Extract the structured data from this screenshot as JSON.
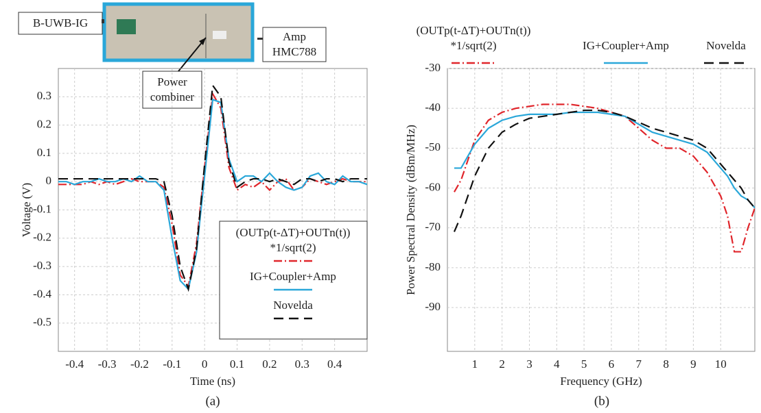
{
  "chart_data": [
    {
      "type": "line",
      "caption": "(a)",
      "xlabel": "Time (ns)",
      "ylabel": "Voltage (V)",
      "annotations": [
        "B-UWB-IG",
        "Amp\nHMC788",
        "Power\ncombiner"
      ],
      "xlim": [
        -0.45,
        0.5
      ],
      "ylim": [
        -0.6,
        0.4
      ],
      "xticks": [
        -0.4,
        -0.3,
        -0.2,
        -0.1,
        0,
        0.1,
        0.2,
        0.3,
        0.4
      ],
      "yticks": [
        -0.5,
        -0.4,
        -0.3,
        -0.2,
        -0.1,
        0,
        0.1,
        0.2,
        0.3
      ],
      "grid": true,
      "legend": "lower right",
      "x": [
        -0.45,
        -0.425,
        -0.4,
        -0.375,
        -0.35,
        -0.325,
        -0.3,
        -0.275,
        -0.25,
        -0.225,
        -0.2,
        -0.175,
        -0.15,
        -0.125,
        -0.1,
        -0.075,
        -0.05,
        -0.025,
        0,
        0.025,
        0.05,
        0.075,
        0.1,
        0.125,
        0.15,
        0.175,
        0.2,
        0.225,
        0.25,
        0.275,
        0.3,
        0.325,
        0.35,
        0.375,
        0.4,
        0.425,
        0.45,
        0.475,
        0.5
      ],
      "series": [
        {
          "name": "(OUTp(t-ΔT)+OUTn(t))\n*1/sqrt(2)",
          "color": "#e0252b",
          "dash": "dashdot",
          "values": [
            -0.01,
            -0.01,
            -0.01,
            -0.01,
            0,
            -0.01,
            0,
            -0.01,
            0,
            0.01,
            0,
            0,
            0,
            -0.02,
            -0.15,
            -0.33,
            -0.37,
            -0.22,
            0.05,
            0.31,
            0.26,
            0.05,
            -0.03,
            -0.01,
            -0.02,
            0,
            -0.03,
            0,
            0.01,
            -0.03,
            -0.02,
            0.01,
            0,
            -0.01,
            0,
            0.01,
            0,
            0,
            0
          ]
        },
        {
          "name": "IG+Coupler+Amp",
          "color": "#2aa7d9",
          "dash": "solid",
          "values": [
            0,
            0,
            -0.01,
            0,
            0,
            0.01,
            0,
            0,
            0.01,
            0,
            0.02,
            0,
            0,
            -0.03,
            -0.2,
            -0.35,
            -0.38,
            -0.25,
            0.02,
            0.29,
            0.28,
            0.08,
            0,
            0.02,
            0.02,
            0,
            0.03,
            0,
            -0.02,
            -0.03,
            -0.02,
            0.02,
            0.03,
            0,
            -0.01,
            0.02,
            0,
            0,
            -0.01
          ]
        },
        {
          "name": "Novelda",
          "color": "#111111",
          "dash": "dash",
          "values": [
            0.01,
            0.01,
            0.01,
            0.01,
            0.01,
            0.01,
            0.01,
            0.01,
            0.01,
            0.01,
            0.01,
            0.01,
            0.01,
            0,
            -0.12,
            -0.3,
            -0.38,
            -0.24,
            0.06,
            0.34,
            0.3,
            0.07,
            -0.02,
            0,
            0.01,
            0.01,
            0,
            0.01,
            0,
            -0.01,
            0.01,
            0.01,
            0,
            0.01,
            0.01,
            0,
            0.01,
            0.01,
            0.01
          ]
        }
      ]
    },
    {
      "type": "line",
      "caption": "(b)",
      "xlabel": "Frequency (GHz)",
      "ylabel": "Power Spectral Density (dBm/MHz)",
      "xlim": [
        0,
        11.25
      ],
      "ylim": [
        -101,
        -30
      ],
      "xticks": [
        1,
        2,
        3,
        4,
        5,
        6,
        7,
        8,
        9,
        10
      ],
      "yticks": [
        -90,
        -80,
        -70,
        -60,
        -50,
        -40,
        -30
      ],
      "grid": true,
      "legend": "top",
      "x": [
        0.25,
        0.5,
        0.75,
        1,
        1.5,
        2,
        2.5,
        3,
        3.5,
        4,
        4.5,
        5,
        5.5,
        6,
        6.5,
        7,
        7.5,
        8,
        8.5,
        9,
        9.5,
        10,
        10.25,
        10.5,
        10.75,
        11,
        11.25
      ],
      "series": [
        {
          "name": "(OUTp(t-ΔT)+OUTn(t))\n*1/sqrt(2)",
          "color": "#e0252b",
          "dash": "dashdot",
          "values": [
            -61,
            -58,
            -53,
            -48,
            -43,
            -41,
            -40,
            -39.5,
            -39,
            -39,
            -39,
            -39.5,
            -40,
            -41,
            -42,
            -45,
            -48,
            -50,
            -50,
            -52,
            -56,
            -62,
            -67,
            -76,
            -76,
            -70,
            -65
          ]
        },
        {
          "name": "IG+Coupler+Amp",
          "color": "#2aa7d9",
          "dash": "solid",
          "values": [
            -55,
            -55,
            -52,
            -49,
            -45,
            -43,
            -42,
            -41.5,
            -41.5,
            -41.5,
            -41,
            -41,
            -41,
            -41.5,
            -42,
            -44,
            -46,
            -47,
            -48,
            -49,
            -51,
            -55,
            -57,
            -60,
            -62,
            -63,
            -65
          ]
        },
        {
          "name": "Novelda",
          "color": "#111111",
          "dash": "dash",
          "values": [
            -71,
            -67,
            -62,
            -57,
            -50,
            -46,
            -44,
            -42.5,
            -42,
            -41.5,
            -41,
            -40.5,
            -40.5,
            -41,
            -42,
            -43.5,
            -45,
            -46,
            -47,
            -48,
            -50,
            -54,
            -56,
            -58,
            -60,
            -63,
            -65
          ]
        }
      ]
    }
  ]
}
